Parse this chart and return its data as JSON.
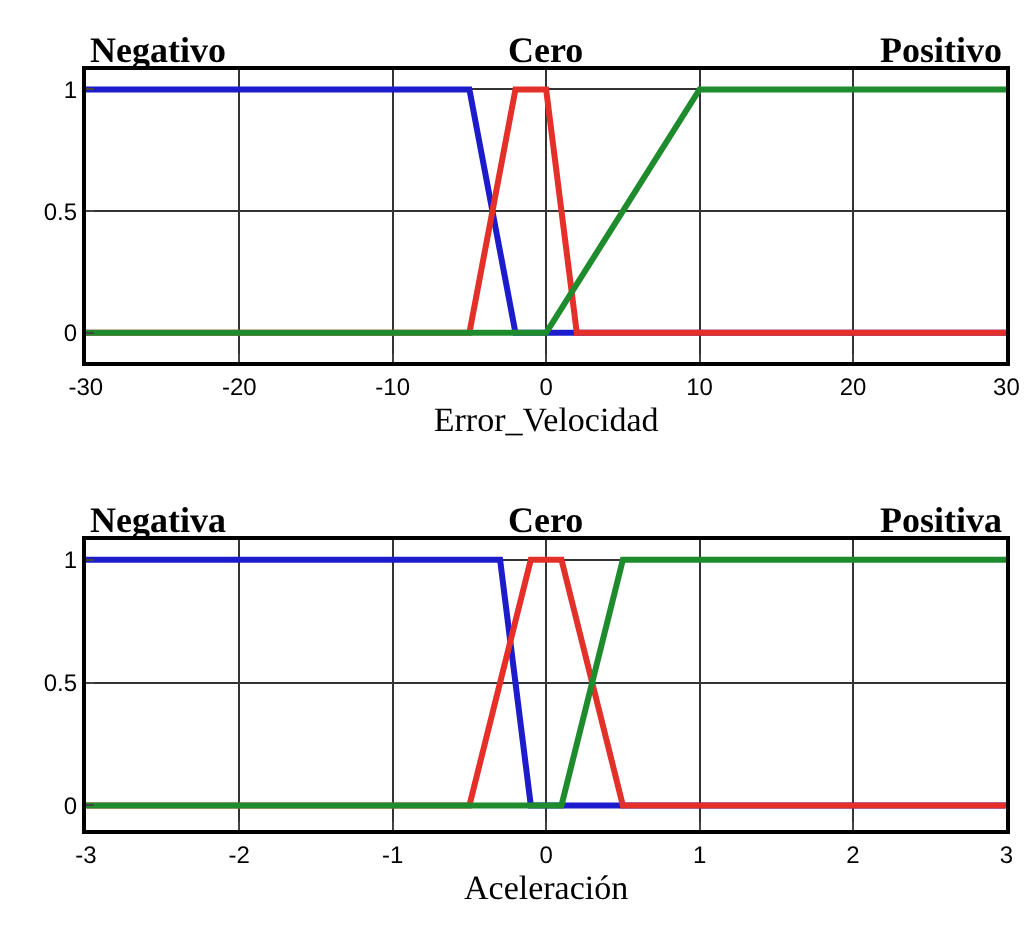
{
  "chart_data": [
    {
      "type": "line",
      "xlabel": "Error_Velocidad",
      "xlim": [
        -30,
        30
      ],
      "xticks": [
        -30,
        -20,
        -10,
        0,
        10,
        20,
        30
      ],
      "ylim": [
        -0.12,
        1.08
      ],
      "yticks": [
        0,
        0.5,
        1
      ],
      "grid": true,
      "series": [
        {
          "name": "Negativo",
          "color": "#1c1ccc",
          "x": [
            -30,
            -5,
            -2,
            30
          ],
          "values": [
            1,
            1,
            0,
            0
          ]
        },
        {
          "name": "Cero",
          "color": "#e5302a",
          "x": [
            -30,
            -5,
            -2,
            0,
            2,
            30
          ],
          "values": [
            0,
            0,
            1,
            1,
            0,
            0
          ]
        },
        {
          "name": "Positivo",
          "color": "#1e8c2c",
          "x": [
            -30,
            0,
            10,
            30
          ],
          "values": [
            0,
            0,
            1,
            1
          ]
        }
      ]
    },
    {
      "type": "line",
      "xlabel": "Aceleración",
      "xlim": [
        -3,
        3
      ],
      "xticks": [
        -3,
        -2,
        -1,
        0,
        1,
        2,
        3
      ],
      "ylim": [
        -0.1,
        1.08
      ],
      "yticks": [
        0,
        0.5,
        1
      ],
      "grid": true,
      "series": [
        {
          "name": "Negativa",
          "color": "#1c1ccc",
          "x": [
            -3,
            -0.3,
            -0.1,
            3
          ],
          "values": [
            1,
            1,
            0,
            0
          ]
        },
        {
          "name": "Cero",
          "color": "#e5302a",
          "x": [
            -3,
            -0.5,
            -0.1,
            0.1,
            0.5,
            3
          ],
          "values": [
            0,
            0,
            1,
            1,
            0,
            0
          ]
        },
        {
          "name": "Positiva",
          "color": "#1e8c2c",
          "x": [
            -3,
            0.1,
            0.5,
            3
          ],
          "values": [
            0,
            0,
            1,
            1
          ]
        }
      ]
    }
  ]
}
